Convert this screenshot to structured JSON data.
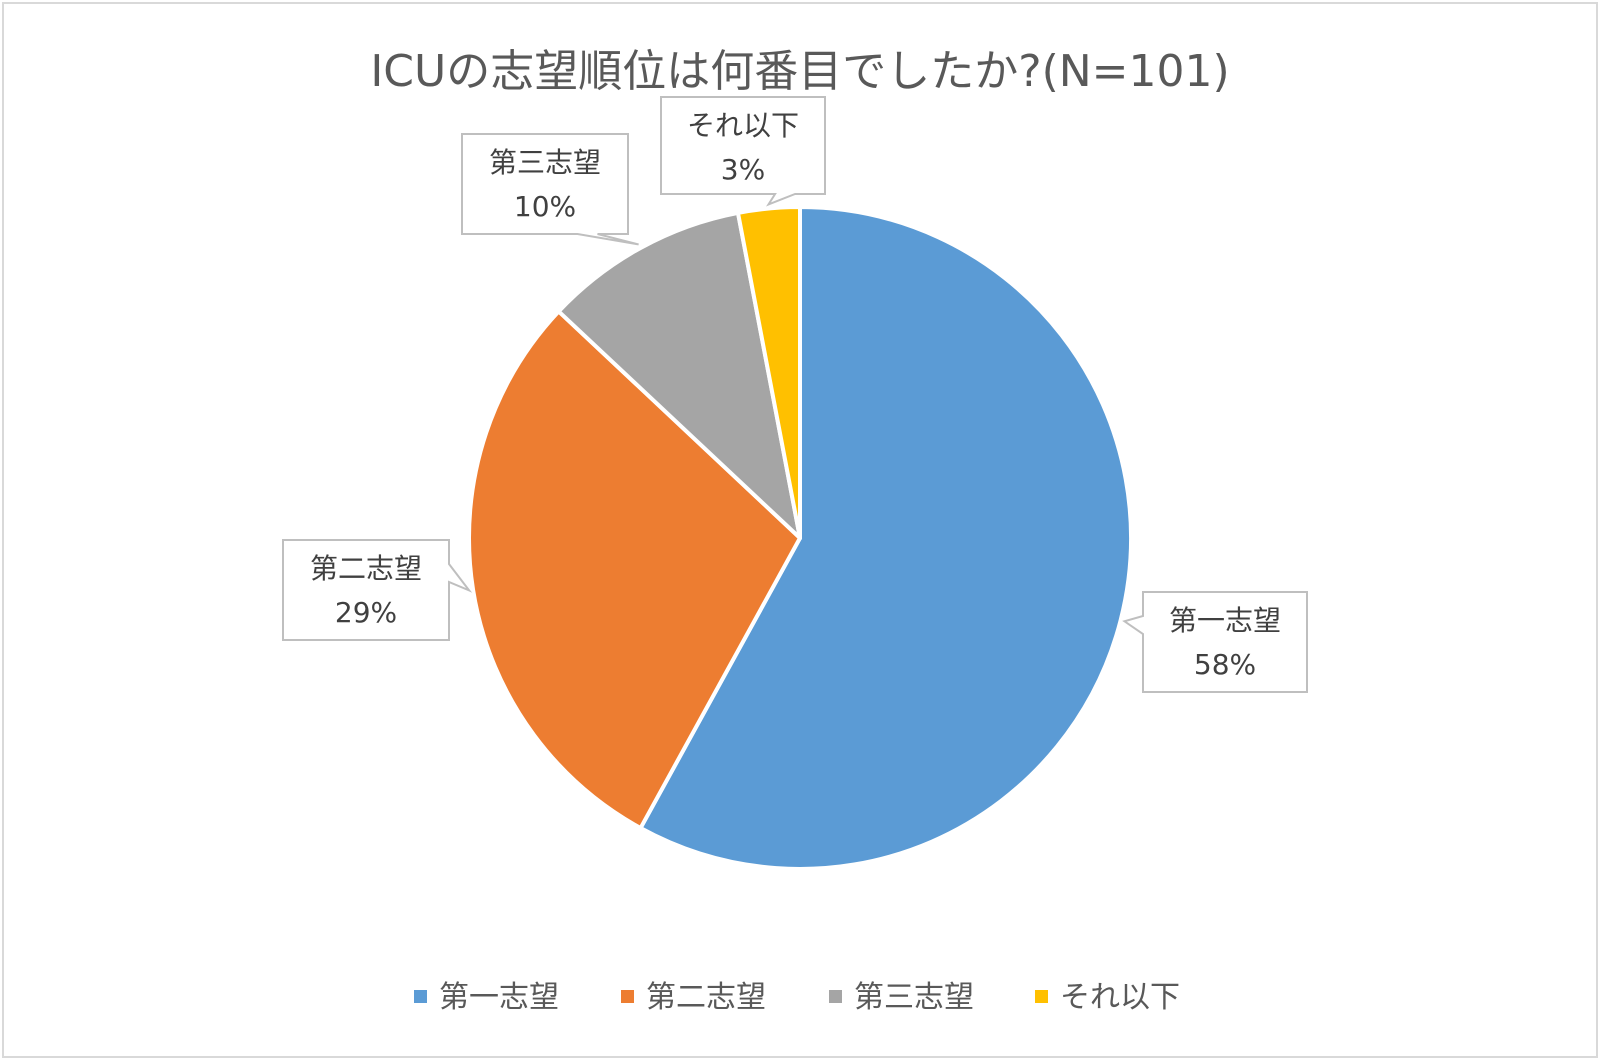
{
  "chart_data": {
    "type": "pie",
    "title": "ICUの志望順位は何番目でしたか?(N=101)",
    "slices": [
      {
        "label": "第一志望",
        "value": 58,
        "value_label": "58%",
        "color": "#5b9bd5"
      },
      {
        "label": "第二志望",
        "value": 29,
        "value_label": "29%",
        "color": "#ed7d31"
      },
      {
        "label": "第三志望",
        "value": 10,
        "value_label": "10%",
        "color": "#a5a5a5"
      },
      {
        "label": "それ以下",
        "value": 3,
        "value_label": "3%",
        "color": "#ffc000"
      }
    ],
    "legend": {
      "position": "bottom"
    },
    "data_labels": "callouts"
  }
}
